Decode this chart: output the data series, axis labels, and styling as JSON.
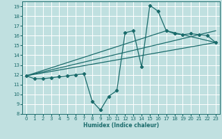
{
  "title": "",
  "xlabel": "Humidex (Indice chaleur)",
  "bg_color": "#c0e0e0",
  "grid_color": "#ffffff",
  "line_color": "#1a6b6b",
  "xlim": [
    -0.5,
    23.5
  ],
  "ylim": [
    8,
    19.5
  ],
  "xticks": [
    0,
    1,
    2,
    3,
    4,
    5,
    6,
    7,
    8,
    9,
    10,
    11,
    12,
    13,
    14,
    15,
    16,
    17,
    18,
    19,
    20,
    21,
    22,
    23
  ],
  "yticks": [
    8,
    9,
    10,
    11,
    12,
    13,
    14,
    15,
    16,
    17,
    18,
    19
  ],
  "series1_x": [
    0,
    1,
    2,
    3,
    4,
    5,
    6,
    7,
    8,
    9,
    10,
    11,
    12,
    13,
    14,
    15,
    16,
    17,
    18,
    19,
    20,
    21,
    22,
    23
  ],
  "series1_y": [
    11.9,
    11.6,
    11.6,
    11.7,
    11.8,
    11.9,
    12.0,
    12.1,
    9.3,
    8.4,
    9.8,
    10.4,
    16.3,
    16.5,
    12.8,
    19.1,
    18.5,
    16.5,
    16.2,
    16.1,
    16.2,
    16.1,
    16.0,
    15.3
  ],
  "line1_x": [
    0,
    23
  ],
  "line1_y": [
    11.9,
    15.3
  ],
  "line2_x": [
    0,
    17,
    23
  ],
  "line2_y": [
    11.9,
    16.5,
    15.3
  ],
  "line3_x": [
    0,
    23
  ],
  "line3_y": [
    11.9,
    16.5
  ]
}
